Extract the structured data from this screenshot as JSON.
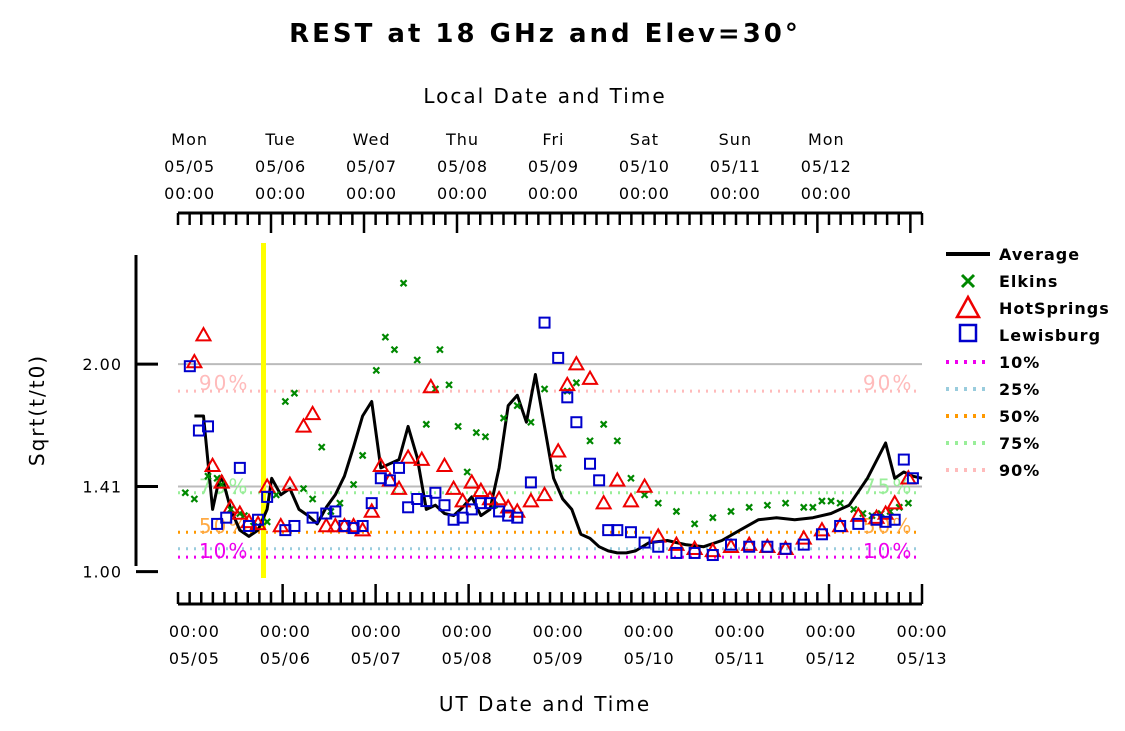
{
  "chart_data": {
    "type": "scatter",
    "title": "REST at 18 GHz and Elev=30°",
    "top_axis_title": "Local Date and Time",
    "bottom_axis_title": "UT Date and Time",
    "ylabel": "Sqrt(t/t0)",
    "yticks": [
      {
        "value": 1.0,
        "label": "1.00"
      },
      {
        "value": 1.41,
        "label": "1.41"
      },
      {
        "value": 2.0,
        "label": "2.00"
      }
    ],
    "ylim": [
      0.95,
      2.55
    ],
    "xlim": [
      -0.18,
      8.0
    ],
    "x_unit": "days since 05/05 00:00 UT",
    "top_ticks": [
      {
        "x": -0.14,
        "day": "Mon",
        "date": "05/05",
        "time": "00:00"
      },
      {
        "x": 0.86,
        "day": "Tue",
        "date": "05/06",
        "time": "00:00"
      },
      {
        "x": 1.86,
        "day": "Wed",
        "date": "05/07",
        "time": "00:00"
      },
      {
        "x": 2.86,
        "day": "Thu",
        "date": "05/08",
        "time": "00:00"
      },
      {
        "x": 3.86,
        "day": "Fri",
        "date": "05/09",
        "time": "00:00"
      },
      {
        "x": 4.86,
        "day": "Sat",
        "date": "05/10",
        "time": "00:00"
      },
      {
        "x": 5.86,
        "day": "Sun",
        "date": "05/11",
        "time": "00:00"
      },
      {
        "x": 6.86,
        "day": "Mon",
        "date": "05/12",
        "time": "00:00"
      }
    ],
    "bottom_ticks": [
      {
        "x": 0,
        "time": "00:00",
        "date": "05/05"
      },
      {
        "x": 1,
        "time": "00:00",
        "date": "05/06"
      },
      {
        "x": 2,
        "time": "00:00",
        "date": "05/07"
      },
      {
        "x": 3,
        "time": "00:00",
        "date": "05/08"
      },
      {
        "x": 4,
        "time": "00:00",
        "date": "05/09"
      },
      {
        "x": 5,
        "time": "00:00",
        "date": "05/10"
      },
      {
        "x": 6,
        "time": "00:00",
        "date": "05/11"
      },
      {
        "x": 7,
        "time": "00:00",
        "date": "05/12"
      },
      {
        "x": 8,
        "time": "00:00",
        "date": "05/13"
      }
    ],
    "current_time_marker": {
      "x": 0.76,
      "color": "#ffff00"
    },
    "grid_lines": [
      {
        "value": 1.41,
        "color": "#bbbbbb"
      },
      {
        "value": 2.0,
        "color": "#bbbbbb"
      }
    ],
    "percentiles": [
      {
        "name": "10%",
        "value": 1.07,
        "color": "#ee00ee"
      },
      {
        "name": "25%",
        "value": 1.11,
        "color": "#99ccdd"
      },
      {
        "name": "50%",
        "value": 1.19,
        "color": "#ff9900"
      },
      {
        "name": "75%",
        "value": 1.38,
        "color": "#99ee99"
      },
      {
        "name": "90%",
        "value": 1.87,
        "color": "#ffbbbb"
      }
    ],
    "percentile_text_labels": [
      {
        "text": "90%",
        "x": 0.05,
        "y": 1.91,
        "color": "#ffbbbb"
      },
      {
        "text": "90%",
        "x": 7.35,
        "y": 1.91,
        "color": "#ffbbbb"
      },
      {
        "text": "75%",
        "x": 0.05,
        "y": 1.41,
        "color": "#99ee99"
      },
      {
        "text": "75%",
        "x": 7.35,
        "y": 1.41,
        "color": "#99ee99"
      },
      {
        "text": "50%",
        "x": 0.05,
        "y": 1.22,
        "color": "#ffaa44"
      },
      {
        "text": "50%",
        "x": 7.35,
        "y": 1.22,
        "color": "#ffaa44"
      },
      {
        "text": "10%",
        "x": 0.05,
        "y": 1.1,
        "color": "#ee00ee"
      },
      {
        "text": "10%",
        "x": 7.35,
        "y": 1.1,
        "color": "#ee00ee"
      }
    ],
    "legend_placement": "right",
    "series": [
      {
        "name": "Average",
        "type": "line",
        "color": "#000000",
        "x": [
          0.0,
          0.1,
          0.2,
          0.25,
          0.3,
          0.4,
          0.5,
          0.6,
          0.7,
          0.8,
          0.85,
          0.95,
          1.05,
          1.15,
          1.25,
          1.35,
          1.45,
          1.55,
          1.65,
          1.75,
          1.85,
          1.95,
          2.05,
          2.15,
          2.25,
          2.35,
          2.45,
          2.55,
          2.65,
          2.75,
          2.85,
          2.95,
          3.05,
          3.15,
          3.25,
          3.35,
          3.45,
          3.55,
          3.65,
          3.75,
          3.85,
          3.95,
          4.05,
          4.15,
          4.25,
          4.35,
          4.45,
          4.55,
          4.65,
          4.75,
          4.85,
          5.0,
          5.2,
          5.4,
          5.6,
          5.8,
          6.0,
          6.2,
          6.4,
          6.6,
          6.8,
          7.0,
          7.2,
          7.4,
          7.6,
          7.7,
          7.8,
          7.9,
          8.0
        ],
        "y": [
          1.75,
          1.75,
          1.3,
          1.4,
          1.46,
          1.3,
          1.2,
          1.17,
          1.2,
          1.3,
          1.45,
          1.37,
          1.4,
          1.3,
          1.27,
          1.23,
          1.31,
          1.37,
          1.46,
          1.6,
          1.75,
          1.82,
          1.5,
          1.52,
          1.54,
          1.7,
          1.55,
          1.3,
          1.32,
          1.28,
          1.27,
          1.31,
          1.36,
          1.27,
          1.3,
          1.5,
          1.8,
          1.85,
          1.72,
          1.95,
          1.7,
          1.45,
          1.35,
          1.3,
          1.18,
          1.16,
          1.12,
          1.1,
          1.09,
          1.09,
          1.1,
          1.14,
          1.15,
          1.13,
          1.12,
          1.15,
          1.2,
          1.25,
          1.26,
          1.25,
          1.26,
          1.28,
          1.32,
          1.45,
          1.62,
          1.45,
          1.48,
          1.46,
          1.45
        ]
      },
      {
        "name": "Elkins",
        "type": "x-marker",
        "color": "#008800",
        "x": [
          -0.1,
          0.0,
          0.15,
          0.25,
          0.3,
          0.4,
          0.5,
          0.55,
          0.65,
          0.8,
          0.9,
          1.0,
          1.1,
          1.2,
          1.3,
          1.4,
          1.5,
          1.6,
          1.75,
          1.85,
          2.0,
          2.1,
          2.2,
          2.3,
          2.45,
          2.55,
          2.65,
          2.7,
          2.8,
          2.9,
          3.0,
          3.1,
          3.2,
          3.3,
          3.4,
          3.55,
          3.7,
          3.85,
          4.0,
          4.1,
          4.2,
          4.35,
          4.5,
          4.65,
          4.8,
          4.95,
          5.1,
          5.3,
          5.5,
          5.7,
          5.9,
          6.1,
          6.3,
          6.5,
          6.7,
          6.8,
          6.9,
          7.0,
          7.1,
          7.25,
          7.35,
          7.45,
          7.55,
          7.65,
          7.75,
          7.85
        ],
        "y": [
          1.38,
          1.35,
          1.46,
          1.45,
          1.42,
          1.3,
          1.28,
          1.27,
          1.22,
          1.24,
          1.37,
          1.82,
          1.86,
          1.4,
          1.35,
          1.6,
          1.29,
          1.33,
          1.42,
          1.56,
          1.97,
          2.13,
          2.07,
          2.39,
          2.02,
          1.71,
          1.88,
          2.07,
          1.9,
          1.7,
          1.48,
          1.67,
          1.65,
          1.32,
          1.74,
          1.8,
          1.72,
          1.88,
          1.5,
          1.87,
          1.91,
          1.63,
          1.71,
          1.63,
          1.45,
          1.37,
          1.33,
          1.29,
          1.23,
          1.26,
          1.29,
          1.31,
          1.32,
          1.33,
          1.31,
          1.31,
          1.34,
          1.34,
          1.33,
          1.3,
          1.28,
          1.27,
          1.28,
          1.29,
          1.31,
          1.33
        ]
      },
      {
        "name": "HotSprings",
        "type": "triangle",
        "color": "#ee0000",
        "x": [
          0.0,
          0.1,
          0.2,
          0.3,
          0.4,
          0.5,
          0.6,
          0.7,
          0.8,
          0.95,
          1.05,
          1.2,
          1.3,
          1.45,
          1.55,
          1.65,
          1.75,
          1.85,
          1.95,
          2.05,
          2.15,
          2.25,
          2.35,
          2.5,
          2.6,
          2.75,
          2.85,
          2.95,
          3.05,
          3.15,
          3.25,
          3.35,
          3.45,
          3.55,
          3.7,
          3.85,
          4.0,
          4.1,
          4.2,
          4.35,
          4.5,
          4.65,
          4.8,
          4.95,
          5.1,
          5.3,
          5.5,
          5.7,
          5.9,
          6.1,
          6.3,
          6.5,
          6.7,
          6.9,
          7.1,
          7.3,
          7.5,
          7.6,
          7.7,
          7.85
        ],
        "y": [
          2.01,
          2.14,
          1.51,
          1.43,
          1.31,
          1.28,
          1.24,
          1.23,
          1.41,
          1.22,
          1.42,
          1.7,
          1.76,
          1.22,
          1.22,
          1.22,
          1.22,
          1.2,
          1.29,
          1.51,
          1.44,
          1.4,
          1.55,
          1.54,
          1.89,
          1.51,
          1.4,
          1.34,
          1.43,
          1.39,
          1.35,
          1.35,
          1.31,
          1.29,
          1.34,
          1.37,
          1.58,
          1.9,
          2.0,
          1.93,
          1.33,
          1.44,
          1.34,
          1.41,
          1.17,
          1.13,
          1.11,
          1.1,
          1.12,
          1.13,
          1.12,
          1.11,
          1.16,
          1.2,
          1.22,
          1.27,
          1.26,
          1.28,
          1.33,
          1.45
        ]
      },
      {
        "name": "Lewisburg",
        "type": "square",
        "color": "#0000cc",
        "x": [
          -0.05,
          0.05,
          0.15,
          0.25,
          0.35,
          0.5,
          0.6,
          0.7,
          0.8,
          1.0,
          1.1,
          1.3,
          1.45,
          1.55,
          1.65,
          1.75,
          1.85,
          1.95,
          2.05,
          2.15,
          2.25,
          2.35,
          2.45,
          2.55,
          2.65,
          2.75,
          2.85,
          2.95,
          3.05,
          3.15,
          3.25,
          3.35,
          3.45,
          3.55,
          3.7,
          3.85,
          4.0,
          4.1,
          4.2,
          4.35,
          4.45,
          4.55,
          4.65,
          4.8,
          4.95,
          5.1,
          5.3,
          5.5,
          5.7,
          5.9,
          6.1,
          6.3,
          6.5,
          6.7,
          6.9,
          7.1,
          7.3,
          7.5,
          7.6,
          7.7,
          7.8,
          7.9
        ],
        "y": [
          1.99,
          1.68,
          1.7,
          1.23,
          1.26,
          1.5,
          1.22,
          1.25,
          1.36,
          1.2,
          1.22,
          1.26,
          1.28,
          1.29,
          1.22,
          1.21,
          1.22,
          1.33,
          1.45,
          1.44,
          1.5,
          1.31,
          1.35,
          1.34,
          1.38,
          1.32,
          1.25,
          1.26,
          1.3,
          1.33,
          1.33,
          1.29,
          1.27,
          1.26,
          1.43,
          2.2,
          2.03,
          1.84,
          1.72,
          1.52,
          1.44,
          1.2,
          1.2,
          1.19,
          1.14,
          1.12,
          1.09,
          1.09,
          1.08,
          1.13,
          1.12,
          1.12,
          1.11,
          1.13,
          1.18,
          1.22,
          1.23,
          1.25,
          1.24,
          1.25,
          1.54,
          1.45
        ]
      }
    ]
  }
}
